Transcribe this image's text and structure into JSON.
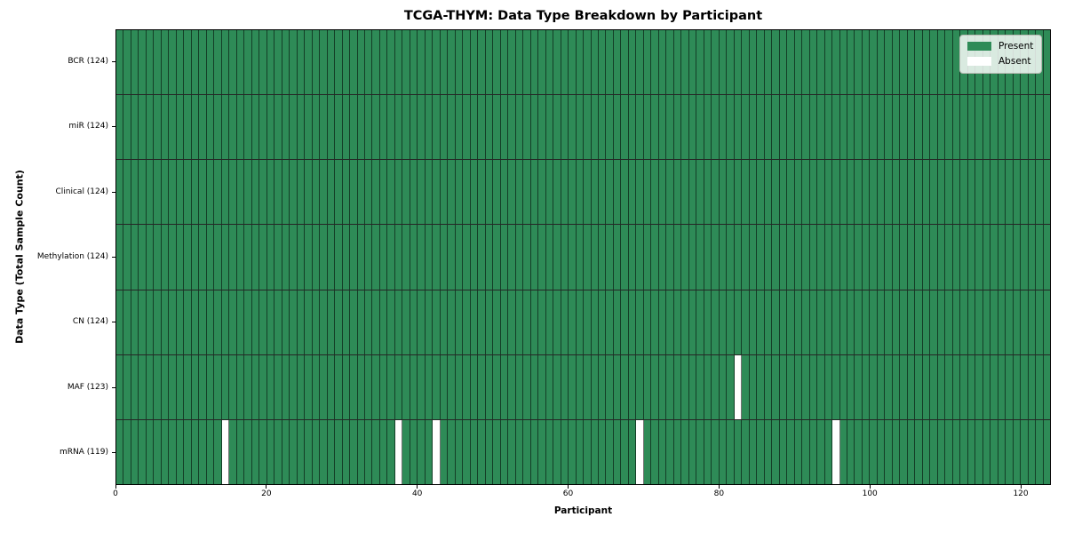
{
  "chart_data": {
    "type": "heatmap",
    "title": "TCGA-THYM: Data Type Breakdown by Participant",
    "xlabel": "Participant",
    "ylabel": "Data Type (Total Sample Count)",
    "n_participants": 124,
    "xlim": [
      0,
      124
    ],
    "x_ticks": [
      0,
      20,
      40,
      60,
      80,
      100,
      120
    ],
    "grid": true,
    "rows": [
      {
        "label": "BCR (124)",
        "data_type": "BCR",
        "present_count": 124,
        "absent_participants": []
      },
      {
        "label": "miR (124)",
        "data_type": "miR",
        "present_count": 124,
        "absent_participants": []
      },
      {
        "label": "Clinical (124)",
        "data_type": "Clinical",
        "present_count": 124,
        "absent_participants": []
      },
      {
        "label": "Methylation (124)",
        "data_type": "Methylation",
        "present_count": 124,
        "absent_participants": []
      },
      {
        "label": "CN (124)",
        "data_type": "CN",
        "present_count": 124,
        "absent_participants": []
      },
      {
        "label": "MAF (123)",
        "data_type": "MAF",
        "present_count": 123,
        "absent_participants": [
          82
        ]
      },
      {
        "label": "mRNA (119)",
        "data_type": "mRNA",
        "present_count": 119,
        "absent_participants": [
          14,
          37,
          42,
          69,
          95
        ]
      }
    ],
    "legend": {
      "position": "upper right",
      "entries": [
        {
          "label": "Present",
          "color": "#2e8b57"
        },
        {
          "label": "Absent",
          "color": "#ffffff"
        }
      ]
    },
    "colors": {
      "present": "#2e8b57",
      "absent": "#ffffff",
      "grid_line": "rgba(0,0,0,0.55)",
      "row_divider": "rgba(0,0,0,0.85)",
      "axes_border": "#000000"
    }
  }
}
